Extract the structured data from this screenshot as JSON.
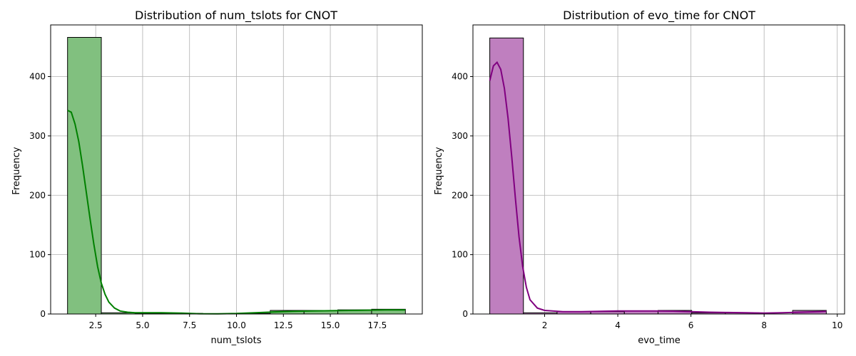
{
  "chart_data": [
    {
      "type": "bar",
      "title": "Distribution of num_tslots for CNOT",
      "xlabel": "num_tslots",
      "ylabel": "Frequency",
      "xlim": [
        0.1,
        19.9
      ],
      "ylim": [
        0,
        487
      ],
      "xticks": [
        2.5,
        5.0,
        7.5,
        10.0,
        12.5,
        15.0,
        17.5
      ],
      "xtick_labels": [
        "2.5",
        "5.0",
        "7.5",
        "10.0",
        "12.5",
        "15.0",
        "17.5"
      ],
      "yticks": [
        0,
        100,
        200,
        300,
        400
      ],
      "ytick_labels": [
        "0",
        "100",
        "200",
        "300",
        "400"
      ],
      "grid": true,
      "bar_color": "#81c07f",
      "kde_color": "#008000",
      "bins": [
        {
          "x0": 1.0,
          "x1": 2.8,
          "count": 466
        },
        {
          "x0": 2.8,
          "x1": 4.6,
          "count": 2
        },
        {
          "x0": 4.6,
          "x1": 6.4,
          "count": 1
        },
        {
          "x0": 6.4,
          "x1": 8.2,
          "count": 1
        },
        {
          "x0": 8.2,
          "x1": 10.0,
          "count": 0
        },
        {
          "x0": 10.0,
          "x1": 11.8,
          "count": 1
        },
        {
          "x0": 11.8,
          "x1": 13.6,
          "count": 6
        },
        {
          "x0": 13.6,
          "x1": 15.4,
          "count": 6
        },
        {
          "x0": 15.4,
          "x1": 17.2,
          "count": 7
        },
        {
          "x0": 17.2,
          "x1": 19.0,
          "count": 8
        }
      ],
      "kde": {
        "x": [
          1.0,
          1.2,
          1.4,
          1.6,
          1.8,
          2.0,
          2.2,
          2.4,
          2.6,
          2.8,
          3.0,
          3.2,
          3.5,
          3.8,
          4.2,
          4.6,
          5.0,
          6.0,
          7.0,
          8.0,
          9.0,
          10.0,
          11.0,
          12.0,
          13.0,
          14.0,
          15.0,
          16.0,
          17.0,
          18.0,
          19.0
        ],
        "y": [
          343,
          340,
          320,
          290,
          250,
          205,
          160,
          118,
          80,
          52,
          33,
          20,
          10,
          5,
          3,
          2,
          2,
          2,
          1.5,
          0.5,
          0.3,
          0.8,
          2,
          3.5,
          4.5,
          5,
          5.5,
          6,
          6.5,
          7,
          7
        ]
      }
    },
    {
      "type": "bar",
      "title": "Distribution of evo_time for CNOT",
      "xlabel": "evo_time",
      "ylabel": "Frequency",
      "xlim": [
        0.04,
        10.2
      ],
      "ylim": [
        0,
        487
      ],
      "xticks": [
        2,
        4,
        6,
        8,
        10
      ],
      "xtick_labels": [
        "2",
        "4",
        "6",
        "8",
        "10"
      ],
      "yticks": [
        0,
        100,
        200,
        300,
        400
      ],
      "ytick_labels": [
        "0",
        "100",
        "200",
        "300",
        "400"
      ],
      "grid": true,
      "bar_color": "#bf7fbf",
      "kde_color": "#800080",
      "bins": [
        {
          "x0": 0.5,
          "x1": 1.42,
          "count": 465
        },
        {
          "x0": 1.42,
          "x1": 2.34,
          "count": 2
        },
        {
          "x0": 2.34,
          "x1": 3.26,
          "count": 4
        },
        {
          "x0": 3.26,
          "x1": 4.18,
          "count": 4
        },
        {
          "x0": 4.18,
          "x1": 5.1,
          "count": 5
        },
        {
          "x0": 5.1,
          "x1": 6.02,
          "count": 6
        },
        {
          "x0": 6.02,
          "x1": 6.94,
          "count": 2
        },
        {
          "x0": 6.94,
          "x1": 7.86,
          "count": 2
        },
        {
          "x0": 7.86,
          "x1": 8.78,
          "count": 0
        },
        {
          "x0": 8.78,
          "x1": 9.7,
          "count": 6
        }
      ],
      "kde": {
        "x": [
          0.5,
          0.6,
          0.7,
          0.8,
          0.9,
          1.0,
          1.1,
          1.2,
          1.3,
          1.4,
          1.5,
          1.6,
          1.8,
          2.0,
          2.5,
          3.0,
          3.5,
          4.0,
          4.5,
          5.0,
          5.5,
          6.0,
          6.5,
          7.0,
          7.5,
          8.0,
          8.5,
          9.0,
          9.5,
          9.7
        ],
        "y": [
          393,
          418,
          424,
          412,
          380,
          330,
          265,
          195,
          130,
          80,
          45,
          24,
          10,
          6,
          4,
          4,
          4.5,
          5,
          5,
          5,
          4.8,
          4,
          3,
          2.5,
          2,
          1.5,
          2,
          3,
          4,
          4.5
        ]
      }
    }
  ]
}
